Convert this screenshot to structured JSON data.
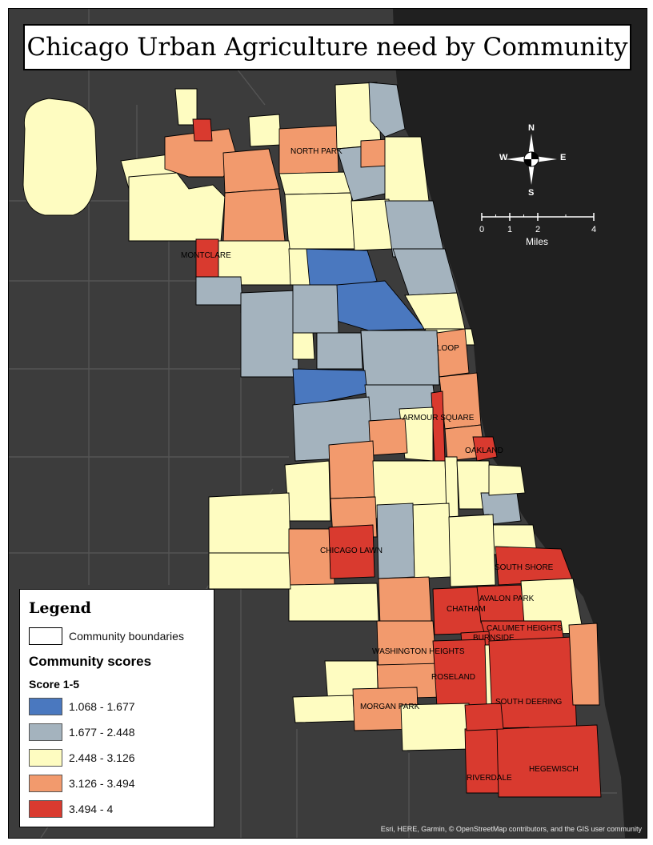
{
  "title": "Chicago Urban Agriculture need by Community",
  "colors": {
    "background": "#3c3c3c",
    "water": "#202020",
    "class_1": "#4a78bf",
    "class_2": "#a4b3be",
    "class_3": "#fefcc1",
    "class_4": "#f29a6d",
    "class_5": "#d93a2f",
    "boundary": "#000000",
    "road": "#545454"
  },
  "labels": {
    "north_park": "NORTH PARK",
    "montclare": "MONTCLARE",
    "loop": "LOOP",
    "armour_square": "ARMOUR SQUARE",
    "oakland": "OAKLAND",
    "chicago_lawn": "CHICAGO LAWN",
    "south_shore": "SOUTH SHORE",
    "avalon_park": "AVALON PARK",
    "chatham": "CHATHAM",
    "calumet_heights": "CALUMET HEIGHTS",
    "burnside": "BURNSIDE",
    "washington_heights": "WASHINGTON HEIGHTS",
    "roseland": "ROSELAND",
    "south_deering": "SOUTH DEERING",
    "morgan_park": "MORGAN PARK",
    "riverdale": "RIVERDALE",
    "hegewisch": "HEGEWISCH"
  },
  "compass": {
    "n": "N",
    "s": "S",
    "e": "E",
    "w": "W"
  },
  "scalebar": {
    "ticks": [
      "0",
      "1",
      "2",
      "4"
    ],
    "unit": "Miles"
  },
  "legend": {
    "title": "Legend",
    "boundary_label": "Community boundaries",
    "scores_title": "Community scores",
    "scale_label": "Score 1-5",
    "classes": [
      {
        "label": "1.068 - 1.677",
        "color": "#4a78bf"
      },
      {
        "label": "1.677 - 2.448",
        "color": "#a4b3be"
      },
      {
        "label": "2.448 - 3.126",
        "color": "#fefcc1"
      },
      {
        "label": "3.126 - 3.494",
        "color": "#f29a6d"
      },
      {
        "label": "3.494 - 4",
        "color": "#d93a2f"
      }
    ]
  },
  "attribution": "Esri, HERE, Garmin, © OpenStreetMap contributors, and the GIS user community"
}
